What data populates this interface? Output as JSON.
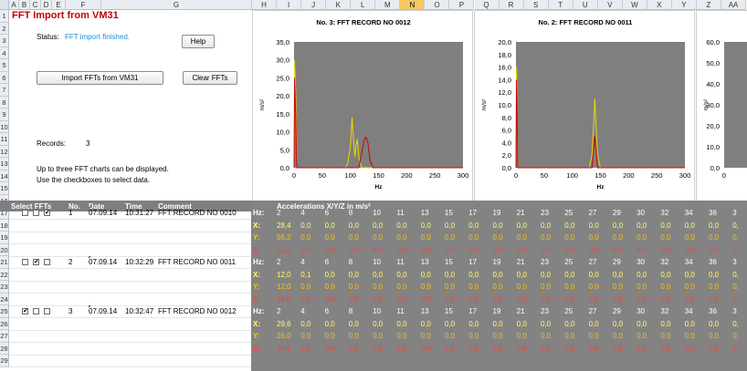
{
  "columns": [
    "A",
    "B",
    "C",
    "D",
    "E",
    "F",
    "G",
    "H",
    "I",
    "J",
    "K",
    "L",
    "M",
    "N",
    "O",
    "P",
    "Q",
    "R",
    "S",
    "T",
    "U",
    "V",
    "W",
    "X",
    "Y",
    "Z",
    "AA"
  ],
  "selected_column": "N",
  "rows": [
    "1",
    "2",
    "3",
    "4",
    "5",
    "6",
    "7",
    "8",
    "9",
    "10",
    "11",
    "12",
    "13",
    "14",
    "15",
    "16",
    "17",
    "18",
    "19",
    "20",
    "21",
    "22",
    "23",
    "24",
    "25",
    "26",
    "27",
    "28",
    "29"
  ],
  "title": "FFT Import from VM31",
  "status": {
    "label": "Status:",
    "value": "FFT import finished."
  },
  "buttons": {
    "help": "Help",
    "import": "Import FFTs from VM31",
    "clear": "Clear FFTs"
  },
  "records": {
    "label": "Records:",
    "value": "3"
  },
  "notes": [
    "Up to three  FFT charts can be displayed.",
    "Use the checkboxes to select data."
  ],
  "table_header": {
    "select": "Select FFTs",
    "no": "No.",
    "date": "Date",
    "time": "Time",
    "comment": "Comment",
    "accel": "Accelerations X/Y/Z in m/s²"
  },
  "records_list": [
    {
      "no": "1",
      "date": "07.09.14",
      "time": "10:31:27",
      "comment": "FFT RECORD NO 0010",
      "checks": [
        false,
        false,
        true
      ],
      "hz": [
        "2",
        "4",
        "6",
        "8",
        "10",
        "11",
        "13",
        "15",
        "17",
        "19",
        "21",
        "23",
        "25",
        "27",
        "29",
        "30",
        "32",
        "34",
        "36",
        "3"
      ],
      "x": [
        "28,4",
        "0,0",
        "0,0",
        "0,0",
        "0,0",
        "0,0",
        "0,0",
        "0,0",
        "0,0",
        "0,0",
        "0,0",
        "0,0",
        "0,0",
        "0,0",
        "0,0",
        "0,0",
        "0,0",
        "0,0",
        "0,0",
        "0,"
      ],
      "y": [
        "56,2",
        "0,0",
        "0,0",
        "0,0",
        "0,0",
        "0,0",
        "0,0",
        "0,0",
        "0,0",
        "0,0",
        "0,0",
        "0,0",
        "0,0",
        "0,0",
        "0,0",
        "0,0",
        "0,0",
        "0,0",
        "0,0",
        "0,"
      ],
      "z": [
        "55,2",
        "0,0",
        "0,0",
        "0,0",
        "0,0",
        "0,0",
        "0,0",
        "0,0",
        "0,0",
        "0,0",
        "0,0",
        "0,0",
        "0,0",
        "0,0",
        "0,0",
        "0,0",
        "0,0",
        "0,0",
        "0,0",
        "0,"
      ]
    },
    {
      "no": "2",
      "date": "07.09.14",
      "time": "10:32:29",
      "comment": "FFT RECORD NO 0011",
      "checks": [
        false,
        true,
        false
      ],
      "hz": [
        "2",
        "4",
        "6",
        "8",
        "10",
        "11",
        "13",
        "15",
        "17",
        "19",
        "21",
        "23",
        "25",
        "27",
        "29",
        "30",
        "32",
        "34",
        "36",
        "3"
      ],
      "x": [
        "12,0",
        "0,1",
        "0,0",
        "0,0",
        "0,0",
        "0,0",
        "0,0",
        "0,0",
        "0,0",
        "0,0",
        "0,0",
        "0,0",
        "0,0",
        "0,0",
        "0,0",
        "0,0",
        "0,0",
        "0,0",
        "0,0",
        "0,"
      ],
      "y": [
        "12,0",
        "0,0",
        "0,0",
        "0,0",
        "0,0",
        "0,0",
        "0,0",
        "0,0",
        "0,0",
        "0,0",
        "0,0",
        "0,0",
        "0,0",
        "0,0",
        "0,0",
        "0,0",
        "0,0",
        "0,0",
        "0,0",
        "0,"
      ],
      "z": [
        "18,0",
        "0,0",
        "0,0",
        "0,0",
        "0,0",
        "0,0",
        "0,0",
        "0,0",
        "0,0",
        "0,0",
        "0,0",
        "0,0",
        "0,0",
        "0,0",
        "0,0",
        "0,0",
        "0,0",
        "0,0",
        "0,0",
        "0,"
      ]
    },
    {
      "no": "3",
      "date": "07.09.14",
      "time": "10:32:47",
      "comment": "FFT RECORD NO 0012",
      "checks": [
        true,
        false,
        false
      ],
      "hz": [
        "2",
        "4",
        "6",
        "8",
        "10",
        "11",
        "13",
        "15",
        "17",
        "19",
        "21",
        "23",
        "25",
        "27",
        "29",
        "30",
        "32",
        "34",
        "36",
        "3"
      ],
      "x": [
        "29,6",
        "0,0",
        "0,0",
        "0,0",
        "0,0",
        "0,0",
        "0,0",
        "0,0",
        "0,0",
        "0,0",
        "0,0",
        "0,0",
        "0,0",
        "0,0",
        "0,0",
        "0,0",
        "0,0",
        "0,0",
        "0,0",
        "0,"
      ],
      "y": [
        "26,0",
        "0,0",
        "0,0",
        "0,0",
        "0,0",
        "0,0",
        "0,0",
        "0,0",
        "0,0",
        "0,0",
        "0,0",
        "0,0",
        "0,0",
        "0,0",
        "0,0",
        "0,0",
        "0,0",
        "0,0",
        "0,0",
        "0,"
      ],
      "z": [
        "24,3",
        "0,0",
        "0,0",
        "0,0",
        "0,0",
        "0,0",
        "0,0",
        "0,0",
        "0,0",
        "0,0",
        "0,0",
        "0,0",
        "0,0",
        "0,0",
        "0,0",
        "0,0",
        "0,0",
        "0,0",
        "0,0",
        "0,"
      ]
    }
  ],
  "axis_labels": {
    "hz": "Hz:",
    "x": "X:",
    "y": "Y:",
    "z": "Z:"
  },
  "colors": {
    "title": "#c00000",
    "status": "#1f8fc9",
    "x": "#ffff66",
    "y": "#ffc000",
    "z": "#ff3b3b",
    "hz": "#ffffff",
    "plot_bg": "#7f7f7f",
    "line_yellow": "#e8d800",
    "line_red": "#d00000"
  },
  "chart_data": [
    {
      "type": "line",
      "title": "No. 3: FFT RECORD NO 0012",
      "xlabel": "Hz",
      "ylabel": "m/s²",
      "xlim": [
        0,
        300
      ],
      "ylim": [
        0,
        35
      ],
      "yticks": [
        "0,0",
        "5,0",
        "10,0",
        "15,0",
        "20,0",
        "25,0",
        "30,0",
        "35,0"
      ],
      "xticks": [
        "0",
        "50",
        "100",
        "150",
        "200",
        "250",
        "300"
      ],
      "series": [
        {
          "color": "#e8d800",
          "x": [
            0,
            1,
            2,
            3,
            4,
            5,
            90,
            95,
            100,
            103,
            105,
            108,
            110,
            112,
            115,
            120,
            300
          ],
          "y": [
            0,
            30,
            26,
            20,
            10,
            0,
            0,
            1,
            6,
            14,
            9,
            3,
            6,
            8,
            3,
            0,
            0
          ]
        },
        {
          "color": "#d00000",
          "x": [
            0,
            1,
            2,
            3,
            4,
            5,
            115,
            120,
            125,
            128,
            131,
            135,
            140,
            300
          ],
          "y": [
            0,
            25,
            20,
            14,
            5,
            0,
            0,
            4,
            8,
            8.5,
            7,
            2,
            0,
            0
          ]
        }
      ]
    },
    {
      "type": "line",
      "title": "No. 2: FFT RECORD NO 0011",
      "xlabel": "Hz",
      "ylabel": "m/s²",
      "xlim": [
        0,
        300
      ],
      "ylim": [
        0,
        20
      ],
      "yticks": [
        "0,0",
        "2,0",
        "4,0",
        "6,0",
        "8,0",
        "10,0",
        "12,0",
        "14,0",
        "16,0",
        "18,0",
        "20,0"
      ],
      "xticks": [
        "0",
        "50",
        "100",
        "150",
        "200",
        "250",
        "300"
      ],
      "series": [
        {
          "color": "#e8d800",
          "x": [
            0,
            1,
            2,
            3,
            130,
            135,
            138,
            140,
            142,
            145,
            150,
            300
          ],
          "y": [
            0,
            16,
            12,
            0,
            0,
            2,
            7,
            11,
            7,
            2,
            0,
            0
          ]
        },
        {
          "color": "#d00000",
          "x": [
            0,
            1,
            2,
            3,
            135,
            138,
            140,
            142,
            145,
            300
          ],
          "y": [
            0,
            14,
            10,
            0,
            0,
            3,
            5,
            3,
            0,
            0
          ]
        }
      ]
    },
    {
      "type": "line",
      "title": "",
      "xlabel": "",
      "ylabel": "m/s²",
      "xlim": [
        0,
        300
      ],
      "ylim": [
        0,
        60
      ],
      "yticks": [
        "0,0",
        "10,0",
        "20,0",
        "30,0",
        "40,0",
        "50,0",
        "60,0"
      ],
      "xticks": [
        "0"
      ],
      "series": []
    }
  ]
}
